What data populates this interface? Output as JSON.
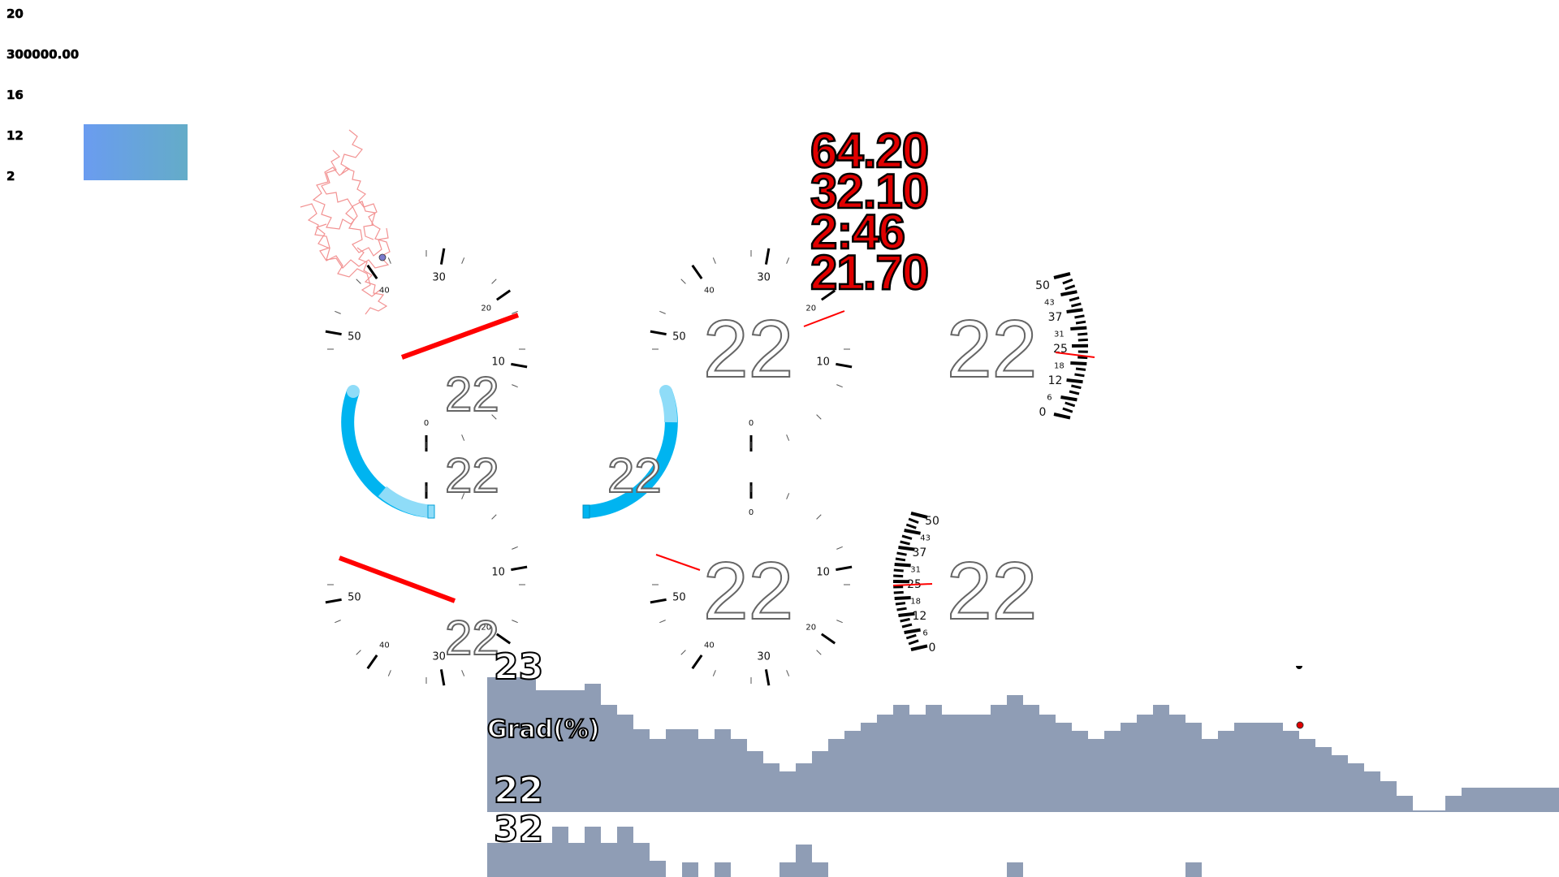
{
  "legend": {
    "labels": [
      "20",
      "300000.00",
      "16",
      "12",
      "2"
    ]
  },
  "readouts": {
    "values": [
      "64.20",
      "32.10",
      "2:46",
      "21.70"
    ]
  },
  "gauge_value": "22",
  "dial_tick_labels": [
    "50",
    "40",
    "30",
    "20",
    "10",
    "0"
  ],
  "bar_tick_labels": [
    "50",
    "43",
    "37",
    "31",
    "25",
    "18",
    "12",
    "6",
    "0"
  ],
  "strip": {
    "elevation_top": "23",
    "gradient_label": "Grad(%)",
    "value_a": "22",
    "value_b": "32"
  },
  "colors": {
    "needle": "#ff0000",
    "arc": "#00b4f0",
    "profile": "#8f9db5",
    "readout": "#e00000",
    "position_marker": "#e00000"
  }
}
